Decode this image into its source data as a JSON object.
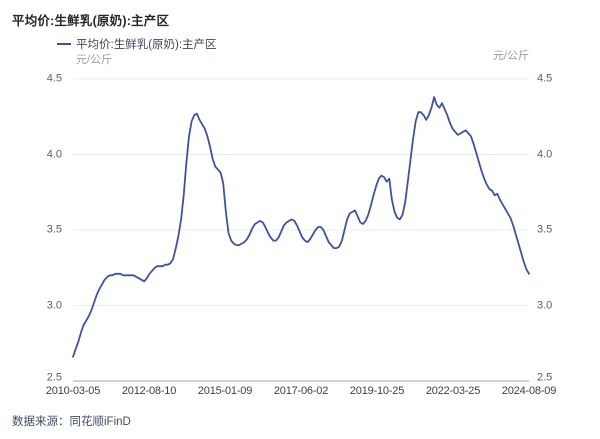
{
  "header": {
    "title": "平均价:生鲜乳(原奶):主产区"
  },
  "legend": {
    "label": "平均价:生鲜乳(原奶):主产区",
    "marker_color": "#3E53A0"
  },
  "axes": {
    "unit_left": "元/公斤",
    "unit_right": "元/公斤",
    "y_tick_labels": [
      "4.5",
      "4.0",
      "3.5",
      "3.0",
      "2.5"
    ],
    "x_tick_labels": [
      "2010-03-05",
      "2012-08-10",
      "2015-01-09",
      "2017-06-02",
      "2019-10-25",
      "2022-03-25",
      "2024-08-09"
    ]
  },
  "footer": {
    "source": "数据来源：同花顺iFinD"
  },
  "colors": {
    "line": "#3E53A0",
    "gridline": "#ebecf2",
    "axis_line": "#bfc3ce",
    "title_text": "#26262b",
    "tick_text": "#5c5e66",
    "date_text": "#3a3f48",
    "unit_text": "#9a9ba8",
    "source_text": "#414d63"
  },
  "chart_data": {
    "type": "line",
    "title": "平均价:生鲜乳(原奶):主产区",
    "ylabel": "元/公斤",
    "ylim": [
      2.5,
      4.5
    ],
    "y_ticks": [
      4.5,
      4.0,
      3.5,
      3.0,
      2.5
    ],
    "x_tick_labels": [
      "2010-03-05",
      "2012-08-10",
      "2015-01-09",
      "2017-06-02",
      "2019-10-25",
      "2022-03-25",
      "2024-08-09"
    ],
    "grid": "horizontal",
    "legend_position": "top-left",
    "series": [
      {
        "name": "平均价:生鲜乳(原奶):主产区",
        "color": "#3E53A0",
        "x": [
          "2010-03",
          "2010-04",
          "2010-05",
          "2010-06",
          "2010-07",
          "2010-08",
          "2010-09",
          "2010-10",
          "2010-11",
          "2010-12",
          "2011-01",
          "2011-02",
          "2011-03",
          "2011-04",
          "2011-05",
          "2011-06",
          "2011-07",
          "2011-08",
          "2011-09",
          "2011-10",
          "2011-11",
          "2011-12",
          "2012-01",
          "2012-02",
          "2012-03",
          "2012-04",
          "2012-05",
          "2012-06",
          "2012-07",
          "2012-08",
          "2012-09",
          "2012-10",
          "2012-11",
          "2012-12",
          "2013-01",
          "2013-02",
          "2013-03",
          "2013-04",
          "2013-05",
          "2013-06",
          "2013-07",
          "2013-08",
          "2013-09",
          "2013-10",
          "2013-11",
          "2013-12",
          "2014-01",
          "2014-02",
          "2014-03",
          "2014-04",
          "2014-05",
          "2014-06",
          "2014-07",
          "2014-08",
          "2014-09",
          "2014-10",
          "2014-11",
          "2014-12",
          "2015-01",
          "2015-02",
          "2015-03",
          "2015-04",
          "2015-05",
          "2015-06",
          "2015-07",
          "2015-08",
          "2015-09",
          "2015-10",
          "2015-11",
          "2015-12",
          "2016-01",
          "2016-02",
          "2016-03",
          "2016-04",
          "2016-05",
          "2016-06",
          "2016-07",
          "2016-08",
          "2016-09",
          "2016-10",
          "2016-11",
          "2016-12",
          "2017-01",
          "2017-02",
          "2017-03",
          "2017-04",
          "2017-05",
          "2017-06",
          "2017-07",
          "2017-08",
          "2017-09",
          "2017-10",
          "2017-11",
          "2017-12",
          "2018-01",
          "2018-02",
          "2018-03",
          "2018-04",
          "2018-05",
          "2018-06",
          "2018-07",
          "2018-08",
          "2018-09",
          "2018-10",
          "2018-11",
          "2018-12",
          "2019-01",
          "2019-02",
          "2019-03",
          "2019-04",
          "2019-05",
          "2019-06",
          "2019-07",
          "2019-08",
          "2019-09",
          "2019-10",
          "2019-11",
          "2019-12",
          "2020-01",
          "2020-02",
          "2020-03",
          "2020-04",
          "2020-05",
          "2020-06",
          "2020-07",
          "2020-08",
          "2020-09",
          "2020-10",
          "2020-11",
          "2020-12",
          "2021-01",
          "2021-02",
          "2021-03",
          "2021-04",
          "2021-05",
          "2021-06",
          "2021-07",
          "2021-08",
          "2021-09",
          "2021-10",
          "2021-11",
          "2021-12",
          "2022-01",
          "2022-02",
          "2022-03",
          "2022-04",
          "2022-05",
          "2022-06",
          "2022-07",
          "2022-08",
          "2022-09",
          "2022-10",
          "2022-11",
          "2022-12",
          "2023-01",
          "2023-02",
          "2023-03",
          "2023-04",
          "2023-05",
          "2023-06",
          "2023-07",
          "2023-08",
          "2023-09",
          "2023-10",
          "2023-11",
          "2023-12",
          "2024-01",
          "2024-02",
          "2024-03",
          "2024-04",
          "2024-05",
          "2024-06",
          "2024-07",
          "2024-08"
        ],
        "values": [
          2.66,
          2.71,
          2.76,
          2.82,
          2.87,
          2.9,
          2.93,
          2.97,
          3.02,
          3.07,
          3.11,
          3.14,
          3.17,
          3.19,
          3.2,
          3.2,
          3.21,
          3.21,
          3.21,
          3.2,
          3.2,
          3.2,
          3.2,
          3.2,
          3.19,
          3.18,
          3.17,
          3.16,
          3.18,
          3.21,
          3.23,
          3.25,
          3.26,
          3.26,
          3.26,
          3.27,
          3.27,
          3.28,
          3.31,
          3.38,
          3.46,
          3.57,
          3.73,
          3.94,
          4.12,
          4.22,
          4.26,
          4.27,
          4.23,
          4.2,
          4.17,
          4.12,
          4.05,
          3.97,
          3.92,
          3.9,
          3.88,
          3.81,
          3.62,
          3.48,
          3.43,
          3.41,
          3.4,
          3.4,
          3.41,
          3.42,
          3.44,
          3.47,
          3.51,
          3.54,
          3.55,
          3.56,
          3.55,
          3.52,
          3.48,
          3.45,
          3.43,
          3.43,
          3.45,
          3.49,
          3.53,
          3.55,
          3.56,
          3.57,
          3.56,
          3.53,
          3.49,
          3.45,
          3.43,
          3.42,
          3.44,
          3.47,
          3.5,
          3.52,
          3.52,
          3.5,
          3.46,
          3.42,
          3.4,
          3.38,
          3.38,
          3.39,
          3.43,
          3.5,
          3.57,
          3.61,
          3.62,
          3.63,
          3.59,
          3.55,
          3.54,
          3.56,
          3.6,
          3.66,
          3.73,
          3.79,
          3.84,
          3.86,
          3.85,
          3.82,
          3.84,
          3.7,
          3.62,
          3.58,
          3.57,
          3.6,
          3.68,
          3.82,
          3.96,
          4.1,
          4.22,
          4.28,
          4.28,
          4.26,
          4.23,
          4.26,
          4.31,
          4.38,
          4.33,
          4.31,
          4.34,
          4.3,
          4.26,
          4.21,
          4.17,
          4.15,
          4.13,
          4.14,
          4.15,
          4.16,
          4.14,
          4.12,
          4.07,
          4.01,
          3.95,
          3.89,
          3.84,
          3.8,
          3.77,
          3.76,
          3.73,
          3.74,
          3.7,
          3.67,
          3.64,
          3.61,
          3.58,
          3.53,
          3.47,
          3.41,
          3.35,
          3.29,
          3.24,
          3.21
        ]
      }
    ],
    "source": "数据来源：同花顺iFinD"
  }
}
